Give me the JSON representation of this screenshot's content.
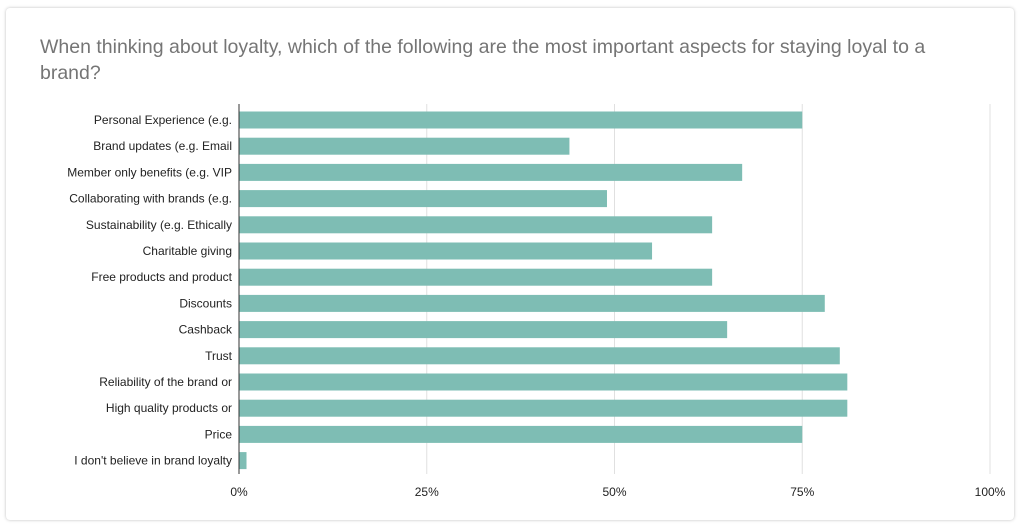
{
  "chart_data": {
    "type": "bar",
    "orientation": "horizontal",
    "title": "When thinking about loyalty, which of the following are the most important aspects for staying loyal to a brand?",
    "categories": [
      "Personal Experience (e.g.",
      "Brand updates (e.g. Email",
      "Member only benefits (e.g. VIP",
      "Collaborating with brands (e.g.",
      "Sustainability (e.g. Ethically",
      "Charitable giving",
      "Free products and product",
      "Discounts",
      "Cashback",
      "Trust",
      "Reliability of the brand or",
      "High quality products or",
      "Price",
      "I don't believe in brand loyalty"
    ],
    "values": [
      75,
      44,
      67,
      49,
      63,
      55,
      63,
      78,
      65,
      80,
      81,
      81,
      75,
      1
    ],
    "unit": "%",
    "xlim": [
      0,
      100
    ],
    "ticks": [
      "0%",
      "25%",
      "50%",
      "75%",
      "100%"
    ],
    "tick_values": [
      0,
      25,
      50,
      75,
      100
    ],
    "grid": true,
    "legend": "none",
    "bar_color": "#7ebdb4",
    "grid_color": "#e0e0e0",
    "axis_color": "#333333"
  }
}
